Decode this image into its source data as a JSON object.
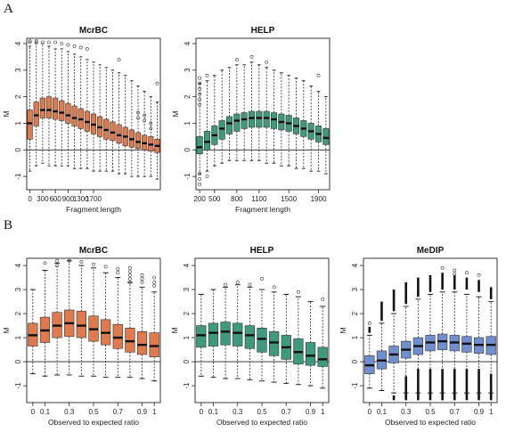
{
  "figure": {
    "panel_a_label": "A",
    "panel_b_label": "B"
  },
  "chart_data": [
    {
      "id": "a-mcrbc",
      "type": "box",
      "title": "McrBC",
      "xlabel": "Fragment length",
      "ylabel": "M",
      "ylim": [
        -1.5,
        4.2
      ],
      "yticks": [
        -1,
        0,
        1,
        2,
        3,
        4
      ],
      "xtick_labels": [
        "0",
        "300",
        "600",
        "900",
        "1300",
        "1700"
      ],
      "xtick_positions": [
        1,
        3,
        5,
        7,
        9,
        11
      ],
      "fill_color": "#e07a4c",
      "q1": [
        0.4,
        0.9,
        1.2,
        1.2,
        1.15,
        1.1,
        1.0,
        0.9,
        0.8,
        0.7,
        0.6,
        0.5,
        0.4,
        0.35,
        0.25,
        0.15,
        0.1,
        0.05,
        0.0,
        -0.05,
        -0.1
      ],
      "median": [
        1.0,
        1.3,
        1.5,
        1.5,
        1.45,
        1.4,
        1.3,
        1.2,
        1.15,
        1.05,
        0.95,
        0.85,
        0.75,
        0.65,
        0.55,
        0.5,
        0.4,
        0.3,
        0.25,
        0.2,
        0.15
      ],
      "q3": [
        1.5,
        1.8,
        1.95,
        2.0,
        1.95,
        1.85,
        1.75,
        1.65,
        1.55,
        1.45,
        1.35,
        1.25,
        1.15,
        1.05,
        0.95,
        0.85,
        0.75,
        0.65,
        0.55,
        0.5,
        0.4
      ],
      "whislo": [
        -0.8,
        -0.6,
        -0.5,
        -0.6,
        -0.6,
        -0.6,
        -0.6,
        -0.7,
        -0.7,
        -0.7,
        -0.8,
        -0.8,
        -0.8,
        -0.8,
        -0.9,
        -0.9,
        -1.0,
        -1.0,
        -1.0,
        -1.0,
        -1.1
      ],
      "whishi": [
        3.9,
        4.0,
        4.0,
        3.9,
        3.8,
        3.8,
        3.7,
        3.6,
        3.5,
        3.4,
        3.3,
        3.2,
        3.1,
        3.0,
        2.9,
        2.8,
        2.6,
        2.4,
        2.2,
        2.0,
        1.8
      ],
      "fliers": [
        [
          4.05,
          4.1
        ],
        [
          4.05,
          4.1
        ],
        [
          4.05
        ],
        [
          4.05
        ],
        [
          4.05
        ],
        [
          4.0
        ],
        [
          3.95
        ],
        [
          3.9
        ],
        [
          3.85
        ],
        [
          3.8
        ],
        [],
        [],
        [],
        [],
        [
          3.4
        ],
        [],
        [],
        [
          1.4,
          1.2
        ],
        [
          1.3,
          1.1
        ],
        [
          1.0,
          0.8
        ],
        [
          2.5
        ]
      ]
    },
    {
      "id": "a-help",
      "type": "box",
      "title": "HELP",
      "xlabel": "Fragment length",
      "ylabel": "M",
      "ylim": [
        -1.5,
        4.2
      ],
      "yticks": [
        -1,
        0,
        1,
        2,
        3,
        4
      ],
      "xtick_labels": [
        "200",
        "500",
        "800",
        "1100",
        "1500",
        "1900"
      ],
      "xtick_positions": [
        1,
        3,
        6,
        9,
        13,
        17
      ],
      "fill_color": "#3e9a7c",
      "q1": [
        -0.15,
        0.0,
        0.2,
        0.4,
        0.6,
        0.7,
        0.8,
        0.85,
        0.85,
        0.85,
        0.8,
        0.75,
        0.7,
        0.6,
        0.5,
        0.4,
        0.3,
        0.2
      ],
      "median": [
        0.1,
        0.3,
        0.55,
        0.8,
        1.0,
        1.1,
        1.15,
        1.2,
        1.2,
        1.2,
        1.15,
        1.05,
        1.0,
        0.9,
        0.8,
        0.7,
        0.6,
        0.45
      ],
      "q3": [
        0.5,
        0.7,
        0.9,
        1.1,
        1.25,
        1.35,
        1.4,
        1.45,
        1.45,
        1.45,
        1.4,
        1.35,
        1.3,
        1.2,
        1.1,
        1.0,
        0.9,
        0.8
      ],
      "whislo": [
        -0.9,
        -0.8,
        -0.6,
        -0.5,
        -0.4,
        -0.4,
        -0.4,
        -0.4,
        -0.4,
        -0.5,
        -0.5,
        -0.6,
        -0.6,
        -0.7,
        -0.7,
        -0.8,
        -0.8,
        -0.9
      ],
      "whishi": [
        2.5,
        2.6,
        2.8,
        3.0,
        3.1,
        3.2,
        3.2,
        3.3,
        3.2,
        3.1,
        3.0,
        2.9,
        2.8,
        2.7,
        2.6,
        2.4,
        2.2,
        2.0
      ],
      "fliers": [
        [
          2.7,
          2.5,
          2.3,
          2.1,
          1.9,
          1.7,
          -0.9,
          -1.1,
          -1.3
        ],
        [
          2.8,
          -1.0
        ],
        [],
        [],
        [],
        [
          3.4
        ],
        [],
        [
          3.5
        ],
        [],
        [
          3.3
        ],
        [],
        [],
        [],
        [],
        [],
        [],
        [
          2.8
        ],
        []
      ]
    },
    {
      "id": "b-mcrbc",
      "type": "box",
      "title": "McrBC",
      "xlabel": "Observed to expected ratio",
      "ylabel": "M",
      "ylim": [
        -1.7,
        4.3
      ],
      "yticks": [
        -1,
        0,
        1,
        2,
        3,
        4
      ],
      "xtick_labels": [
        "0",
        "0.1",
        "0.3",
        "0.5",
        "0.7",
        "0.9",
        "1"
      ],
      "xtick_positions": [
        1,
        2,
        4,
        6,
        8,
        10,
        11
      ],
      "fill_color": "#e07a4c",
      "q1": [
        0.65,
        0.8,
        1.0,
        1.05,
        1.0,
        0.85,
        0.7,
        0.55,
        0.4,
        0.3,
        0.2
      ],
      "median": [
        1.1,
        1.3,
        1.5,
        1.6,
        1.5,
        1.35,
        1.2,
        1.0,
        0.85,
        0.7,
        0.65
      ],
      "q3": [
        1.6,
        1.85,
        2.05,
        2.15,
        2.1,
        1.9,
        1.75,
        1.55,
        1.4,
        1.25,
        1.2
      ],
      "whislo": [
        -0.5,
        -0.6,
        -0.55,
        -0.55,
        -0.6,
        -0.6,
        -0.65,
        -0.65,
        -0.65,
        -0.7,
        -0.8
      ],
      "whishi": [
        3.0,
        3.8,
        4.1,
        4.2,
        4.0,
        3.9,
        3.7,
        3.5,
        3.3,
        3.1,
        2.9
      ],
      "fliers": [
        [],
        [
          4.1
        ],
        [
          4.2,
          4.0
        ],
        [
          4.2
        ],
        [
          4.15
        ],
        [
          4.05
        ],
        [
          3.95
        ],
        [
          3.85,
          3.7
        ],
        [
          3.9,
          3.75,
          3.6,
          3.45,
          3.3
        ],
        [
          3.6,
          3.45,
          3.3
        ],
        [
          3.5,
          3.3,
          3.15
        ]
      ]
    },
    {
      "id": "b-help",
      "type": "box",
      "title": "HELP",
      "xlabel": "Observed to expected ratio",
      "ylabel": "M",
      "ylim": [
        -1.7,
        4.3
      ],
      "yticks": [
        -1,
        0,
        1,
        2,
        3,
        4
      ],
      "xtick_labels": [
        "0",
        "0.1",
        "0.3",
        "0.5",
        "0.7",
        "0.9",
        "1"
      ],
      "xtick_positions": [
        1,
        2,
        4,
        6,
        8,
        10,
        11
      ],
      "fill_color": "#3e9a7c",
      "q1": [
        0.6,
        0.65,
        0.7,
        0.65,
        0.55,
        0.4,
        0.25,
        0.1,
        -0.1,
        -0.15,
        -0.2
      ],
      "median": [
        1.1,
        1.2,
        1.25,
        1.2,
        1.1,
        0.95,
        0.8,
        0.6,
        0.4,
        0.25,
        0.1
      ],
      "q3": [
        1.5,
        1.6,
        1.65,
        1.6,
        1.5,
        1.4,
        1.25,
        1.1,
        0.95,
        0.8,
        0.6
      ],
      "whislo": [
        -0.6,
        -0.65,
        -0.7,
        -0.7,
        -0.75,
        -0.8,
        -0.85,
        -0.9,
        -0.95,
        -1.0,
        -1.1
      ],
      "whishi": [
        2.8,
        3.0,
        3.1,
        3.2,
        3.1,
        3.0,
        2.9,
        2.8,
        2.7,
        2.5,
        2.3
      ],
      "fliers": [
        [],
        [],
        [
          3.2
        ],
        [
          3.3
        ],
        [
          3.2
        ],
        [
          3.45
        ],
        [
          3.1
        ],
        [],
        [
          2.9
        ],
        [],
        [
          2.6
        ]
      ]
    },
    {
      "id": "b-medip",
      "type": "box",
      "title": "MeDIP",
      "xlabel": "Observed to expected ratio",
      "ylabel": "M",
      "ylim": [
        -1.7,
        4.3
      ],
      "yticks": [
        -1,
        0,
        1,
        2,
        3,
        4
      ],
      "xtick_labels": [
        "0",
        "0.1",
        "0.3",
        "0.5",
        "0.7",
        "0.9",
        "1"
      ],
      "xtick_positions": [
        1,
        2,
        4,
        6,
        8,
        10,
        11
      ],
      "fill_color": "#6f8fd1",
      "q1": [
        -0.5,
        -0.3,
        -0.05,
        0.15,
        0.3,
        0.45,
        0.5,
        0.45,
        0.4,
        0.35,
        0.3
      ],
      "median": [
        -0.15,
        0.05,
        0.3,
        0.5,
        0.65,
        0.8,
        0.85,
        0.8,
        0.75,
        0.7,
        0.7
      ],
      "q3": [
        0.25,
        0.45,
        0.65,
        0.85,
        1.0,
        1.1,
        1.15,
        1.1,
        1.05,
        1.0,
        1.05
      ],
      "whislo": [
        -1.1,
        -1.2,
        -1.3,
        -1.3,
        -1.3,
        -1.3,
        -1.3,
        -1.3,
        -1.3,
        -1.3,
        -1.3
      ],
      "whishi": [
        1.1,
        1.6,
        2.0,
        2.3,
        2.6,
        2.8,
        2.9,
        2.9,
        2.8,
        2.7,
        2.5
      ],
      "flier_bands": [
        [
          1.2,
          1.45
        ],
        [
          1.7,
          2.5
        ],
        [
          2.1,
          3.0
        ],
        [
          2.4,
          3.3
        ],
        [
          2.7,
          3.5
        ],
        [
          2.9,
          3.6
        ],
        [
          3.0,
          3.7
        ],
        [
          3.0,
          3.6
        ],
        [
          3.0,
          3.5
        ],
        [
          2.9,
          3.4
        ],
        [
          2.6,
          3.1
        ]
      ],
      "low_flier_bands": [
        [],
        [],
        [
          -1.4,
          -1.6
        ],
        [
          -0.6,
          -1.6
        ],
        [
          -0.3,
          -1.6
        ],
        [
          -0.3,
          -1.6
        ],
        [
          -0.3,
          -1.6
        ],
        [
          -0.3,
          -1.6
        ],
        [
          -0.3,
          -1.6
        ],
        [
          -0.3,
          -1.6
        ],
        [
          -0.5,
          -1.6
        ]
      ],
      "fliers": [
        [
          1.6
        ],
        [],
        [],
        [],
        [],
        [],
        [
          3.9
        ],
        [
          3.8,
          3.65
        ],
        [
          3.7
        ],
        [
          3.6
        ],
        []
      ]
    }
  ]
}
